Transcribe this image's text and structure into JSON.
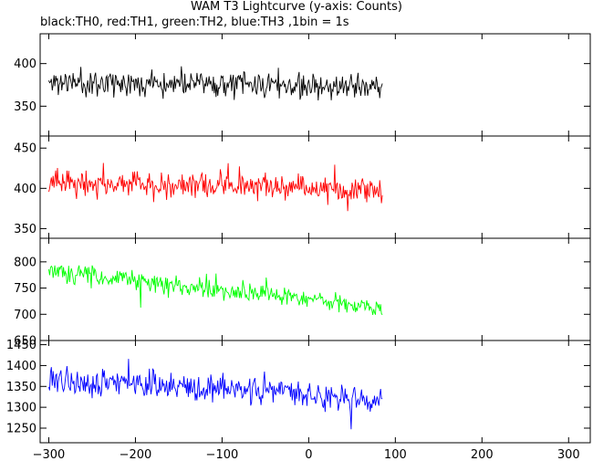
{
  "chart_data": {
    "type": "line",
    "title": "WAM T3 Lightcurve (y-axis: Counts)",
    "subtitle": "black:TH0, red:TH1, green:TH2, blue:TH3 ,1bin = 1s",
    "xlabel": "",
    "ylabel": "",
    "xlim": [
      -310,
      325
    ],
    "xticks": [
      -300,
      -200,
      -100,
      0,
      100,
      200,
      300
    ],
    "x_range": [
      -300,
      85
    ],
    "grid": false,
    "panels": [
      {
        "name": "TH0",
        "color": "#000000",
        "ylim": [
          315,
          435
        ],
        "yticks": [
          350,
          400
        ],
        "trend": [
          [
            -300,
            378
          ],
          [
            -200,
            378
          ],
          [
            -100,
            376
          ],
          [
            0,
            374
          ],
          [
            85,
            372
          ]
        ],
        "noise": 22,
        "seed": 11
      },
      {
        "name": "TH1",
        "color": "#ff0000",
        "ylim": [
          338,
          465
        ],
        "yticks": [
          350,
          400,
          450
        ],
        "trend": [
          [
            -300,
            407
          ],
          [
            -200,
            405
          ],
          [
            -100,
            403
          ],
          [
            0,
            401
          ],
          [
            85,
            398
          ]
        ],
        "noise": 24,
        "seed": 23
      },
      {
        "name": "TH2",
        "color": "#00ff00",
        "ylim": [
          650,
          845
        ],
        "yticks": [
          650,
          700,
          750,
          800
        ],
        "trend": [
          [
            -300,
            785
          ],
          [
            -200,
            762
          ],
          [
            -100,
            745
          ],
          [
            0,
            730
          ],
          [
            50,
            718
          ],
          [
            85,
            708
          ]
        ],
        "noise": 28,
        "seed": 37
      },
      {
        "name": "TH3",
        "color": "#0000ff",
        "ylim": [
          1215,
          1460
        ],
        "yticks": [
          1250,
          1300,
          1350,
          1400,
          1450
        ],
        "trend": [
          [
            -300,
            1365
          ],
          [
            -200,
            1357
          ],
          [
            -100,
            1345
          ],
          [
            0,
            1332
          ],
          [
            85,
            1310
          ]
        ],
        "noise": 45,
        "seed": 53
      }
    ]
  }
}
